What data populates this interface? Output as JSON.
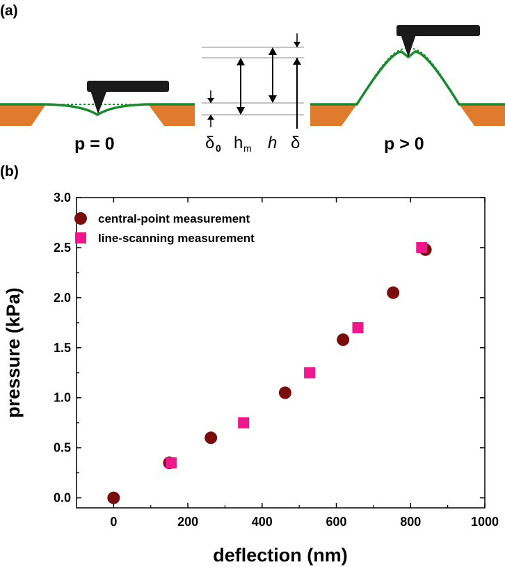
{
  "schematic": {
    "panel_label": "(a)",
    "state_left": "p = 0",
    "state_right": "p > 0",
    "symbols": {
      "delta0_main": "δ",
      "delta0_sub": "0",
      "hm_main": "h",
      "hm_sub": "m",
      "h": "h",
      "delta": "δ"
    },
    "colors": {
      "membrane": "#1a8a2e",
      "substrate": "#e07a2c",
      "tip": "#1a1a1a"
    }
  },
  "chart_panel_label": "(b)",
  "chart_data": {
    "type": "scatter",
    "title": "",
    "xlabel": "deflection (nm)",
    "ylabel": "pressure (kPa)",
    "xlim": [
      -100,
      1000
    ],
    "ylim": [
      -0.1,
      3.0
    ],
    "xticks": [
      0,
      200,
      400,
      600,
      800,
      1000
    ],
    "yticks": [
      0.0,
      0.5,
      1.0,
      1.5,
      2.0,
      2.5,
      3.0
    ],
    "xtick_labels": [
      "0",
      "200",
      "400",
      "600",
      "800",
      "1000"
    ],
    "ytick_labels": [
      "0.0",
      "0.5",
      "1.0",
      "1.5",
      "2.0",
      "2.5",
      "3.0"
    ],
    "grid": false,
    "legend_position": "top-left",
    "series": [
      {
        "name": "central-point measurement",
        "marker": "circle",
        "color": "#7a0c0c",
        "x": [
          0,
          150,
          262,
          462,
          618,
          753,
          840
        ],
        "y": [
          0.0,
          0.35,
          0.6,
          1.05,
          1.58,
          2.05,
          2.48
        ]
      },
      {
        "name": "line-scanning measurement",
        "marker": "square",
        "color": "#f0168c",
        "x": [
          155,
          350,
          528,
          658,
          830
        ],
        "y": [
          0.35,
          0.75,
          1.25,
          1.7,
          2.5
        ]
      }
    ]
  }
}
